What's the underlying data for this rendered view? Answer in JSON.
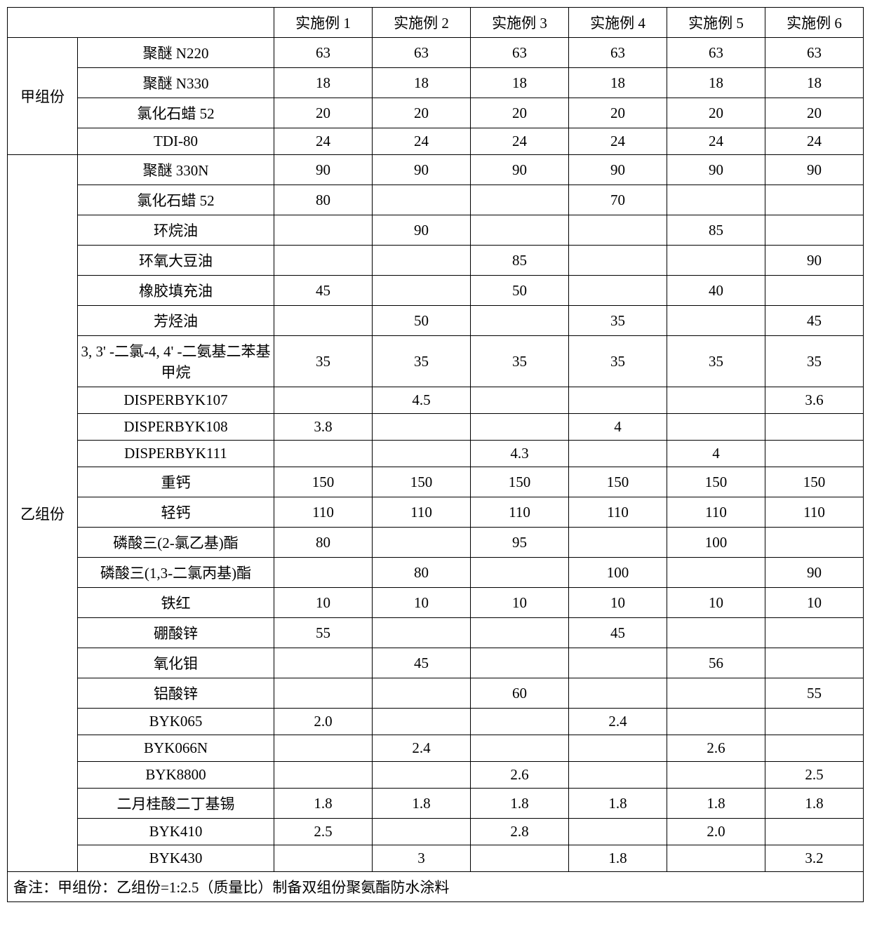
{
  "table": {
    "font_size_pt": 16,
    "border_color": "#000000",
    "background_color": "#ffffff",
    "text_color": "#000000",
    "header_blank": "",
    "col_headers": [
      "实施例 1",
      "实施例 2",
      "实施例 3",
      "实施例 4",
      "实施例 5",
      "实施例 6"
    ],
    "groups": [
      {
        "label": "甲组份",
        "rows": [
          {
            "name": "聚醚 N220",
            "values": [
              "63",
              "63",
              "63",
              "63",
              "63",
              "63"
            ]
          },
          {
            "name": "聚醚 N330",
            "values": [
              "18",
              "18",
              "18",
              "18",
              "18",
              "18"
            ]
          },
          {
            "name": "氯化石蜡 52",
            "values": [
              "20",
              "20",
              "20",
              "20",
              "20",
              "20"
            ]
          },
          {
            "name": "TDI-80",
            "values": [
              "24",
              "24",
              "24",
              "24",
              "24",
              "24"
            ]
          }
        ]
      },
      {
        "label": "乙组份",
        "rows": [
          {
            "name": "聚醚 330N",
            "values": [
              "90",
              "90",
              "90",
              "90",
              "90",
              "90"
            ]
          },
          {
            "name": "氯化石蜡 52",
            "values": [
              "80",
              "",
              "",
              "70",
              "",
              ""
            ]
          },
          {
            "name": "环烷油",
            "values": [
              "",
              "90",
              "",
              "",
              "85",
              ""
            ]
          },
          {
            "name": "环氧大豆油",
            "values": [
              "",
              "",
              "85",
              "",
              "",
              "90"
            ]
          },
          {
            "name": "橡胶填充油",
            "values": [
              "45",
              "",
              "50",
              "",
              "40",
              ""
            ]
          },
          {
            "name": "芳烃油",
            "values": [
              "",
              "50",
              "",
              "35",
              "",
              "45"
            ]
          },
          {
            "name": "3, 3' -二氯-4, 4' -二氨基二苯基甲烷",
            "values": [
              "35",
              "35",
              "35",
              "35",
              "35",
              "35"
            ]
          },
          {
            "name": "DISPERBYK107",
            "values": [
              "",
              "4.5",
              "",
              "",
              "",
              "3.6"
            ]
          },
          {
            "name": "DISPERBYK108",
            "values": [
              "3.8",
              "",
              "",
              "4",
              "",
              ""
            ]
          },
          {
            "name": "DISPERBYK111",
            "values": [
              "",
              "",
              "4.3",
              "",
              "4",
              ""
            ]
          },
          {
            "name": "重钙",
            "values": [
              "150",
              "150",
              "150",
              "150",
              "150",
              "150"
            ]
          },
          {
            "name": "轻钙",
            "values": [
              "110",
              "110",
              "110",
              "110",
              "110",
              "110"
            ]
          },
          {
            "name": "磷酸三(2-氯乙基)酯",
            "values": [
              "80",
              "",
              "95",
              "",
              "100",
              ""
            ]
          },
          {
            "name": "磷酸三(1,3-二氯丙基)酯",
            "values": [
              "",
              "80",
              "",
              "100",
              "",
              "90"
            ]
          },
          {
            "name": "铁红",
            "values": [
              "10",
              "10",
              "10",
              "10",
              "10",
              "10"
            ]
          },
          {
            "name": "硼酸锌",
            "values": [
              "55",
              "",
              "",
              "45",
              "",
              ""
            ]
          },
          {
            "name": "氧化钼",
            "values": [
              "",
              "45",
              "",
              "",
              "56",
              ""
            ]
          },
          {
            "name": "铝酸锌",
            "values": [
              "",
              "",
              "60",
              "",
              "",
              "55"
            ]
          },
          {
            "name": "BYK065",
            "values": [
              "2.0",
              "",
              "",
              "2.4",
              "",
              ""
            ]
          },
          {
            "name": "BYK066N",
            "values": [
              "",
              "2.4",
              "",
              "",
              "2.6",
              ""
            ]
          },
          {
            "name": "BYK8800",
            "values": [
              "",
              "",
              "2.6",
              "",
              "",
              "2.5"
            ]
          },
          {
            "name": "二月桂酸二丁基锡",
            "values": [
              "1.8",
              "1.8",
              "1.8",
              "1.8",
              "1.8",
              "1.8"
            ]
          },
          {
            "name": "BYK410",
            "values": [
              "2.5",
              "",
              "2.8",
              "",
              "2.0",
              ""
            ]
          },
          {
            "name": "BYK430",
            "values": [
              "",
              "3",
              "",
              "1.8",
              "",
              "3.2"
            ]
          }
        ]
      }
    ],
    "note": "备注：甲组份：乙组份=1:2.5（质量比）制备双组份聚氨酯防水涂料"
  }
}
